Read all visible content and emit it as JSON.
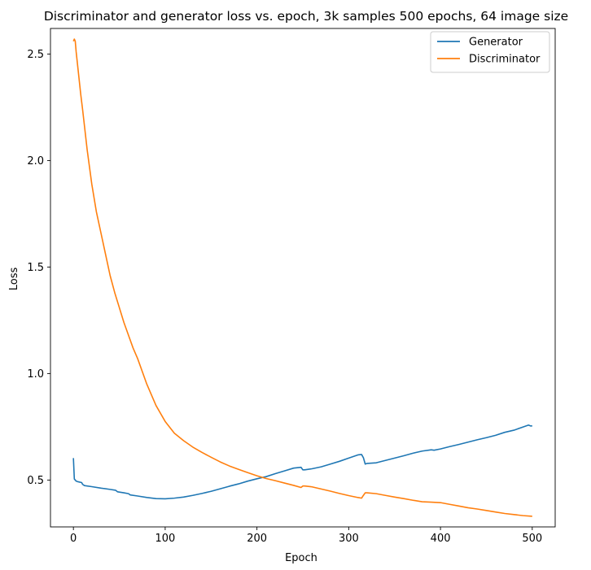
{
  "chart_data": {
    "type": "line",
    "title": "Discriminator and generator loss vs. epoch, 3k samples 500 epochs, 64 image size",
    "xlabel": "Epoch",
    "ylabel": "Loss",
    "xlim": [
      -25,
      525
    ],
    "ylim": [
      0.28,
      2.62
    ],
    "xticks": [
      0,
      100,
      200,
      300,
      400,
      500
    ],
    "yticks": [
      0.5,
      1.0,
      1.5,
      2.0,
      2.5
    ],
    "xtick_labels": [
      "0",
      "100",
      "200",
      "300",
      "400",
      "500"
    ],
    "ytick_labels": [
      "0.5",
      "1.0",
      "1.5",
      "2.0",
      "2.5"
    ],
    "grid": false,
    "legend_position": "top-right",
    "series": [
      {
        "name": "Generator",
        "color": "#1f77b4",
        "x": [
          0,
          1,
          3,
          5,
          9,
          10,
          12,
          20,
          30,
          40,
          46,
          48,
          55,
          60,
          62,
          70,
          80,
          90,
          100,
          110,
          120,
          130,
          140,
          150,
          160,
          170,
          180,
          190,
          200,
          210,
          220,
          230,
          240,
          248,
          250,
          252,
          260,
          270,
          280,
          290,
          300,
          310,
          314,
          316,
          318,
          320,
          330,
          340,
          350,
          360,
          370,
          380,
          390,
          393,
          400,
          410,
          420,
          430,
          440,
          450,
          460,
          470,
          480,
          490,
          496,
          498,
          500
        ],
        "y": [
          0.603,
          0.505,
          0.495,
          0.492,
          0.488,
          0.48,
          0.474,
          0.469,
          0.462,
          0.456,
          0.452,
          0.445,
          0.44,
          0.436,
          0.43,
          0.425,
          0.418,
          0.413,
          0.412,
          0.415,
          0.42,
          0.428,
          0.437,
          0.447,
          0.459,
          0.471,
          0.482,
          0.495,
          0.506,
          0.516,
          0.53,
          0.543,
          0.556,
          0.56,
          0.548,
          0.548,
          0.553,
          0.562,
          0.575,
          0.588,
          0.603,
          0.618,
          0.62,
          0.605,
          0.575,
          0.578,
          0.581,
          0.592,
          0.603,
          0.614,
          0.626,
          0.636,
          0.642,
          0.64,
          0.646,
          0.657,
          0.667,
          0.678,
          0.689,
          0.699,
          0.71,
          0.724,
          0.734,
          0.749,
          0.758,
          0.754,
          0.754
        ]
      },
      {
        "name": "Discriminator",
        "color": "#ff7f0e",
        "x": [
          0,
          1,
          2,
          3,
          5,
          8,
          10,
          15,
          20,
          25,
          30,
          35,
          40,
          45,
          50,
          55,
          60,
          65,
          70,
          80,
          90,
          100,
          110,
          120,
          130,
          140,
          150,
          160,
          170,
          180,
          190,
          200,
          210,
          220,
          230,
          240,
          248,
          250,
          252,
          260,
          270,
          280,
          290,
          300,
          310,
          314,
          316,
          318,
          320,
          330,
          340,
          350,
          360,
          370,
          380,
          390,
          400,
          410,
          420,
          430,
          440,
          450,
          460,
          470,
          480,
          490,
          500
        ],
        "y": [
          2.56,
          2.57,
          2.56,
          2.51,
          2.43,
          2.31,
          2.24,
          2.05,
          1.89,
          1.76,
          1.66,
          1.56,
          1.46,
          1.38,
          1.31,
          1.24,
          1.18,
          1.12,
          1.07,
          0.95,
          0.85,
          0.775,
          0.72,
          0.685,
          0.655,
          0.63,
          0.607,
          0.585,
          0.566,
          0.55,
          0.535,
          0.52,
          0.507,
          0.497,
          0.486,
          0.475,
          0.465,
          0.472,
          0.472,
          0.468,
          0.458,
          0.448,
          0.437,
          0.427,
          0.418,
          0.415,
          0.428,
          0.44,
          0.44,
          0.436,
          0.428,
          0.42,
          0.413,
          0.405,
          0.398,
          0.396,
          0.394,
          0.386,
          0.378,
          0.37,
          0.364,
          0.357,
          0.35,
          0.343,
          0.338,
          0.333,
          0.33
        ]
      }
    ]
  }
}
